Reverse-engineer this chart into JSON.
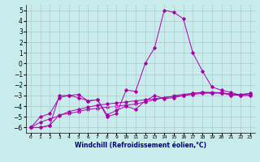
{
  "xlabel": "Windchill (Refroidissement éolien,°C)",
  "x_values": [
    0,
    1,
    2,
    3,
    4,
    5,
    6,
    7,
    8,
    9,
    10,
    11,
    12,
    13,
    14,
    15,
    16,
    17,
    18,
    19,
    20,
    21,
    22,
    23
  ],
  "series": [
    [
      -6.0,
      -6.0,
      -5.8,
      -4.8,
      -4.7,
      -4.5,
      -4.3,
      -4.2,
      -4.1,
      -4.0,
      -3.9,
      -3.8,
      -3.6,
      -3.4,
      -3.2,
      -3.0,
      -2.9,
      -2.8,
      -2.7,
      -2.7,
      -2.75,
      -2.85,
      -2.9,
      -2.95
    ],
    [
      -6.0,
      -5.5,
      -5.2,
      -4.9,
      -4.5,
      -4.3,
      -4.1,
      -3.9,
      -3.8,
      -3.7,
      -3.6,
      -3.5,
      -3.4,
      -3.3,
      -3.2,
      -3.1,
      -3.0,
      -2.9,
      -2.8,
      -2.75,
      -2.8,
      -2.9,
      -3.0,
      -3.0
    ],
    [
      -6.0,
      -5.0,
      -4.7,
      -3.2,
      -3.0,
      -2.9,
      -3.5,
      -3.4,
      -4.8,
      -4.4,
      -4.0,
      -4.3,
      -3.5,
      -3.0,
      -3.3,
      -3.2,
      -3.0,
      -2.8,
      -2.7,
      -2.8,
      -2.7,
      -3.0,
      -2.9,
      -2.8
    ],
    [
      -6.0,
      -6.0,
      -5.8,
      -3.0,
      -3.0,
      -3.2,
      -3.5,
      -3.4,
      -5.0,
      -4.7,
      -2.5,
      -2.6,
      0.0,
      1.5,
      5.0,
      4.8,
      4.2,
      1.0,
      -0.7,
      -2.2,
      -2.5,
      -2.7,
      -3.0,
      -2.8
    ]
  ],
  "line_color": "#aa00aa",
  "bg_color": "#c8ecec",
  "grid_color": "#b0c8c8",
  "ylim": [
    -6.5,
    5.5
  ],
  "yticks": [
    -6,
    -5,
    -4,
    -3,
    -2,
    -1,
    0,
    1,
    2,
    3,
    4,
    5
  ],
  "xlim": [
    -0.5,
    23.5
  ]
}
